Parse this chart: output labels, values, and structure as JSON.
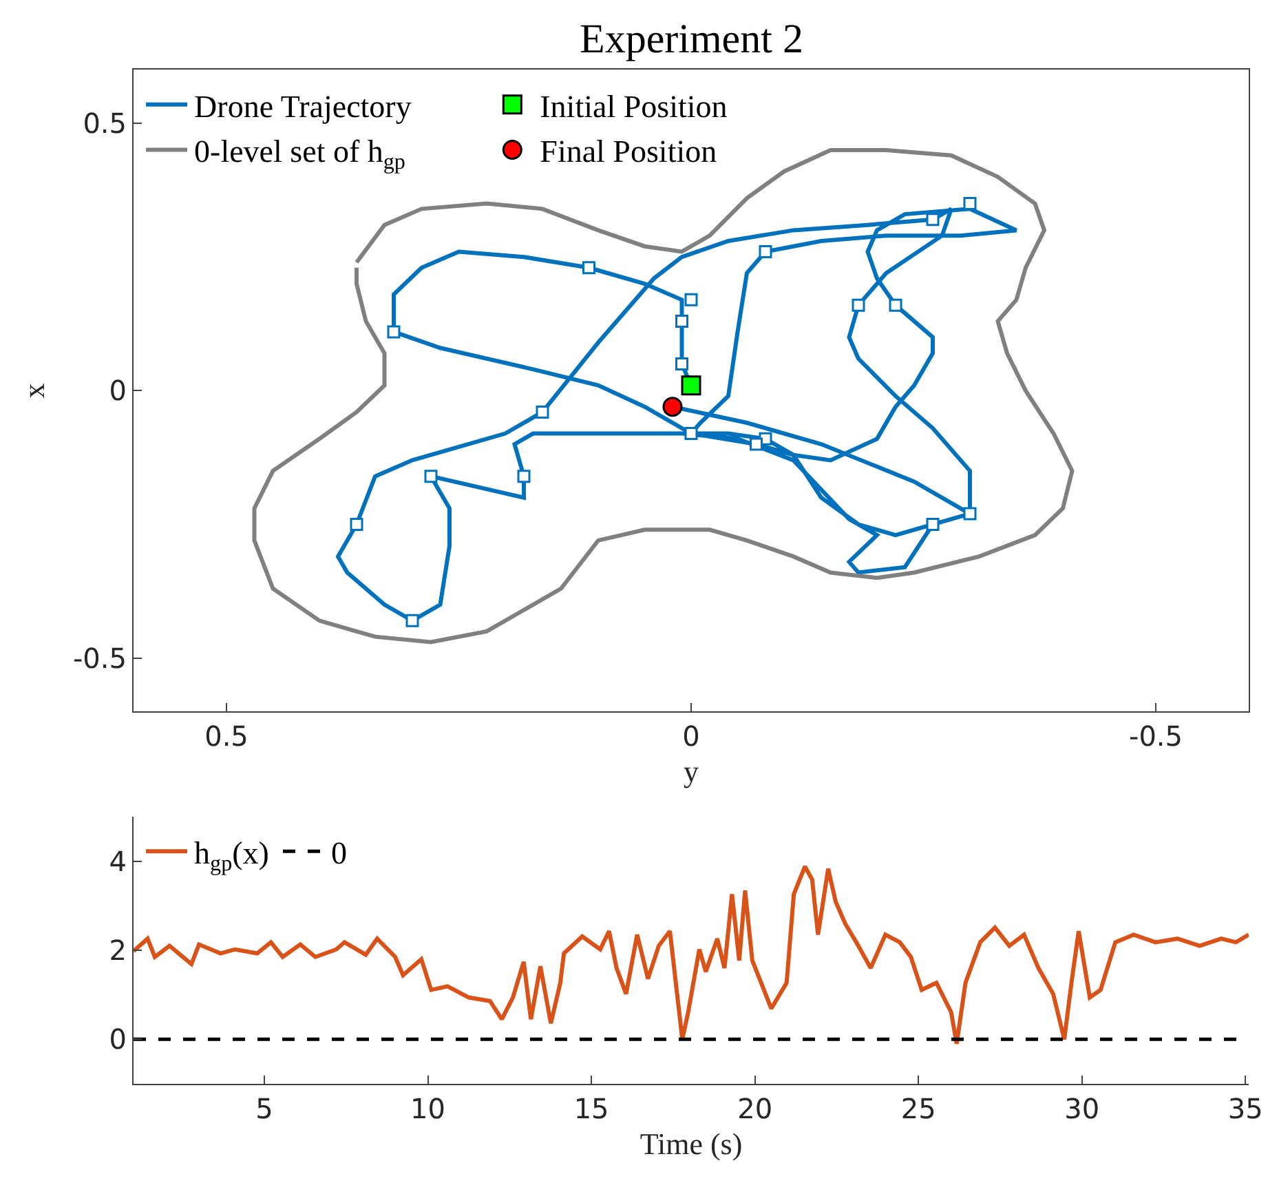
{
  "chart_data": [
    {
      "type": "line",
      "title": "Experiment 2",
      "xlabel": "y",
      "ylabel": "x",
      "xlim": [
        0.6,
        -0.6
      ],
      "xticks": [
        0.5,
        0,
        -0.5
      ],
      "ylim": [
        -0.6,
        0.6
      ],
      "yticks": [
        -0.5,
        0,
        0.5
      ],
      "legend": "top left",
      "marker": "none",
      "line_style": "solid",
      "series": [
        {
          "name": "Drone Trajectory",
          "color": "#0072bd",
          "x": [
            0.0,
            0.01,
            0.01,
            0.01,
            0.01,
            0.05,
            0.11,
            0.18,
            0.25,
            0.29,
            0.32,
            0.32,
            0.32,
            0.27,
            0.17,
            0.1,
            0.05,
            0.0,
            -0.04,
            -0.08,
            -0.11,
            -0.15,
            -0.2,
            -0.22,
            -0.24,
            -0.26,
            -0.26,
            -0.22,
            -0.2,
            -0.19,
            -0.2,
            -0.23,
            -0.3,
            -0.35,
            -0.29,
            -0.21,
            -0.14,
            -0.08,
            -0.06,
            -0.05,
            -0.04,
            -0.01,
            0.0,
            -0.07,
            -0.11,
            -0.14,
            -0.18,
            -0.22,
            -0.26,
            -0.3,
            -0.3,
            -0.3,
            -0.26,
            -0.22,
            -0.18,
            -0.17,
            -0.18,
            -0.21,
            -0.27,
            -0.28,
            -0.26,
            -0.19,
            -0.11,
            -0.04,
            0.01,
            0.04,
            0.1,
            0.16,
            0.2,
            0.3,
            0.34,
            0.36,
            0.38,
            0.37,
            0.33,
            0.3,
            0.27,
            0.26,
            0.26,
            0.28,
            0.18,
            0.18,
            0.19,
            0.17,
            0.01,
            -0.05,
            -0.11,
            -0.17,
            -0.2,
            -0.17,
            -0.18,
            -0.23,
            -0.26,
            -0.3,
            -0.24,
            -0.14,
            -0.06,
            0.02
          ],
          "values": [
            0.01,
            0.05,
            0.09,
            0.13,
            0.17,
            0.2,
            0.23,
            0.25,
            0.26,
            0.23,
            0.18,
            0.14,
            0.11,
            0.08,
            0.04,
            0.01,
            -0.03,
            -0.08,
            -0.08,
            -0.09,
            -0.12,
            -0.13,
            -0.09,
            -0.03,
            0.01,
            0.07,
            0.1,
            0.16,
            0.21,
            0.26,
            0.3,
            0.33,
            0.34,
            0.3,
            0.29,
            0.29,
            0.28,
            0.26,
            0.22,
            0.11,
            -0.01,
            -0.06,
            -0.08,
            -0.1,
            -0.12,
            -0.2,
            -0.25,
            -0.27,
            -0.25,
            -0.23,
            -0.2,
            -0.15,
            -0.07,
            -0.01,
            0.06,
            0.1,
            0.16,
            0.22,
            0.29,
            0.34,
            0.32,
            0.31,
            0.3,
            0.28,
            0.25,
            0.21,
            0.09,
            -0.04,
            -0.08,
            -0.13,
            -0.16,
            -0.25,
            -0.31,
            -0.34,
            -0.4,
            -0.43,
            -0.4,
            -0.29,
            -0.22,
            -0.16,
            -0.2,
            -0.16,
            -0.1,
            -0.08,
            -0.08,
            -0.09,
            -0.13,
            -0.24,
            -0.27,
            -0.32,
            -0.34,
            -0.33,
            -0.25,
            -0.23,
            -0.17,
            -0.1,
            -0.06,
            -0.03
          ]
        },
        {
          "name": "0-level set of h$_{gp}$",
          "color": "#808080",
          "x": [
            0.36,
            0.33,
            0.29,
            0.22,
            0.16,
            0.1,
            0.05,
            0.01,
            -0.02,
            -0.06,
            -0.1,
            -0.15,
            -0.21,
            -0.28,
            -0.33,
            -0.37,
            -0.38,
            -0.36,
            -0.35,
            -0.33,
            -0.34,
            -0.36,
            -0.39,
            -0.41,
            -0.4,
            -0.37,
            -0.31,
            -0.24,
            -0.2,
            -0.15,
            -0.11,
            -0.06,
            -0.02,
            0.01,
            0.05,
            0.1,
            0.14,
            0.17,
            0.22,
            0.28,
            0.34,
            0.4,
            0.45,
            0.47,
            0.47,
            0.45,
            0.4,
            0.36,
            0.33,
            0.33,
            0.35,
            0.36,
            0.36
          ],
          "values": [
            0.24,
            0.31,
            0.34,
            0.35,
            0.34,
            0.3,
            0.27,
            0.26,
            0.29,
            0.36,
            0.41,
            0.45,
            0.45,
            0.44,
            0.4,
            0.35,
            0.3,
            0.23,
            0.17,
            0.13,
            0.07,
            0.0,
            -0.08,
            -0.15,
            -0.22,
            -0.27,
            -0.31,
            -0.34,
            -0.35,
            -0.34,
            -0.31,
            -0.28,
            -0.26,
            -0.26,
            -0.26,
            -0.28,
            -0.37,
            -0.4,
            -0.45,
            -0.47,
            -0.46,
            -0.43,
            -0.37,
            -0.28,
            -0.22,
            -0.15,
            -0.09,
            -0.04,
            0.01,
            0.07,
            0.13,
            0.2,
            0.23
          ]
        },
        {
          "type": "scatter",
          "marker": "square",
          "color": "#0072bd",
          "x": [
            0.0,
            0.01,
            0.01,
            0.11,
            0.32,
            -0.08,
            -0.26,
            -0.3,
            -0.18,
            -0.22,
            0.16,
            0.28,
            0.18,
            0.36,
            0.3,
            0.0,
            -0.08,
            -0.07,
            -0.26,
            -0.3
          ],
          "values": [
            0.17,
            0.13,
            0.05,
            0.23,
            0.11,
            0.26,
            0.32,
            0.35,
            0.16,
            0.16,
            -0.04,
            -0.16,
            -0.16,
            -0.25,
            -0.43,
            -0.08,
            -0.09,
            -0.1,
            -0.25,
            -0.23
          ]
        },
        {
          "type": "scatter",
          "marker": "square",
          "name": "Initial Position",
          "color": "#00ff00",
          "x": [
            0.0
          ],
          "values": [
            0.01
          ]
        },
        {
          "type": "scatter",
          "marker": "circle",
          "name": "Final Position",
          "color": "#ff0000",
          "x": [
            0.02
          ],
          "values": [
            -0.03
          ]
        }
      ]
    },
    {
      "type": "line",
      "xlabel": "Time (s)",
      "xlim": [
        1,
        35.1
      ],
      "xticks": [
        5,
        10,
        15,
        20,
        25,
        30,
        35
      ],
      "ylim": [
        -1,
        5
      ],
      "yticks": [
        0,
        2,
        4
      ],
      "legend": "top left",
      "series": [
        {
          "name": "h$_{gp}$(x)",
          "color": "#d95319",
          "x": [
            1.0,
            1.43,
            1.65,
            2.1,
            2.77,
            3.0,
            3.66,
            4.1,
            4.78,
            5.2,
            5.56,
            6.1,
            6.56,
            7.2,
            7.45,
            8.1,
            8.45,
            9.0,
            9.24,
            9.8,
            10.1,
            10.6,
            11.25,
            11.9,
            12.26,
            12.6,
            12.93,
            13.15,
            13.44,
            13.76,
            14.05,
            14.16,
            14.72,
            15.27,
            15.54,
            15.77,
            16.06,
            16.4,
            16.73,
            17.06,
            17.4,
            17.78,
            17.96,
            18.3,
            18.5,
            18.85,
            19.07,
            19.3,
            19.52,
            19.7,
            19.92,
            20.19,
            20.5,
            20.97,
            21.19,
            21.53,
            21.75,
            21.93,
            22.24,
            22.47,
            22.76,
            23.1,
            23.54,
            23.99,
            24.43,
            24.77,
            25.1,
            25.55,
            26.0,
            26.17,
            26.44,
            26.89,
            27.34,
            27.78,
            28.23,
            28.67,
            29.12,
            29.46,
            29.68,
            29.9,
            30.24,
            30.57,
            31.02,
            31.58,
            32.25,
            32.92,
            33.6,
            34.26,
            34.71,
            35.1
          ],
          "values": [
            1.98,
            2.26,
            1.85,
            2.1,
            1.69,
            2.13,
            1.93,
            2.02,
            1.93,
            2.18,
            1.85,
            2.13,
            1.85,
            2.02,
            2.18,
            1.9,
            2.26,
            1.85,
            1.44,
            1.8,
            1.11,
            1.19,
            0.94,
            0.86,
            0.45,
            0.94,
            1.74,
            0.45,
            1.64,
            0.36,
            1.27,
            1.93,
            2.31,
            2.02,
            2.43,
            1.6,
            1.02,
            2.35,
            1.36,
            2.1,
            2.43,
            0.0,
            0.61,
            2.02,
            1.52,
            2.26,
            1.6,
            3.26,
            1.77,
            3.34,
            1.77,
            1.27,
            0.69,
            1.27,
            3.26,
            3.88,
            3.59,
            2.35,
            3.83,
            3.09,
            2.6,
            2.18,
            1.6,
            2.35,
            2.18,
            1.85,
            1.11,
            1.27,
            0.61,
            -0.1,
            1.27,
            2.18,
            2.51,
            2.1,
            2.35,
            1.6,
            1.02,
            0.0,
            1.27,
            2.43,
            0.94,
            1.11,
            2.18,
            2.35,
            2.18,
            2.26,
            2.1,
            2.26,
            2.18,
            2.35
          ]
        }
      ],
      "ref_lines": [
        {
          "axis": "y",
          "value": 0,
          "label": "0",
          "color": "#000000",
          "line_style": "dashed"
        }
      ]
    }
  ]
}
